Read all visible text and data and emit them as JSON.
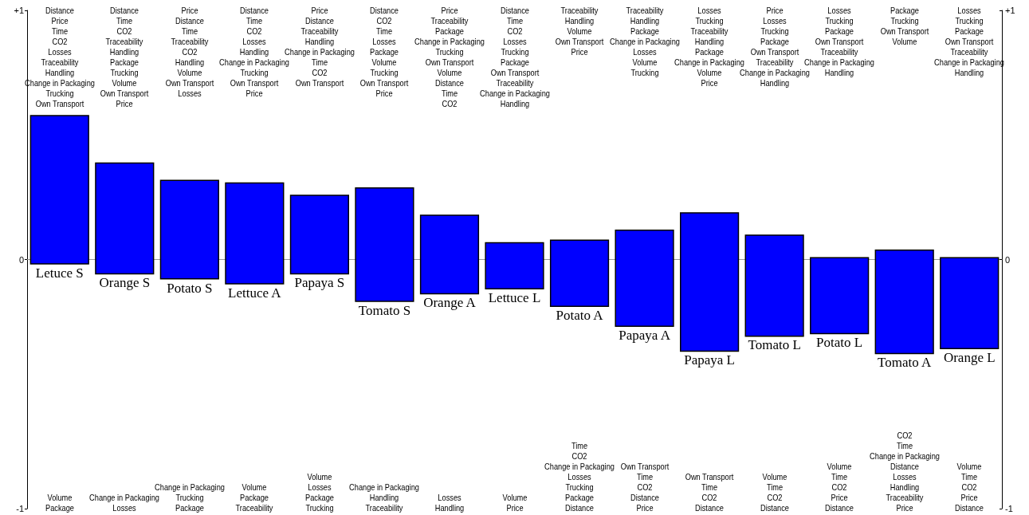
{
  "chart_data": {
    "type": "bar",
    "categories": [
      "Letuce S",
      "Orange S",
      "Potato S",
      "Lettuce A",
      "Papaya S",
      "Tomato S",
      "Orange A",
      "Lettuce L",
      "Potato A",
      "Papaya A",
      "Papaya L",
      "Tomato L",
      "Potato L",
      "Tomato A",
      "Orange L"
    ],
    "base": [
      -0.02,
      -0.06,
      -0.08,
      -0.1,
      -0.06,
      -0.17,
      -0.14,
      -0.12,
      -0.19,
      -0.27,
      -0.37,
      -0.31,
      -0.3,
      -0.38,
      -0.36
    ],
    "values": [
      0.6,
      0.45,
      0.4,
      0.41,
      0.32,
      0.46,
      0.32,
      0.19,
      0.27,
      0.39,
      0.56,
      0.41,
      0.31,
      0.42,
      0.37
    ],
    "color": "#0000ff",
    "ylim": [
      -1,
      1
    ],
    "yticks": [
      {
        "value": 1,
        "label": "+1"
      },
      0,
      -1
    ],
    "y2lim": [
      -1,
      1
    ],
    "y2ticks": [
      {
        "value": 1,
        "label": "+1"
      },
      0,
      -1
    ],
    "grid": false,
    "annotations": [
      "Distance\nPrice\nTime\nCO2\nLosses\nTraceability\nHandling\nChange in Packaging\nTrucking\nOwn Transport",
      "Distance\nTime\nCO2\nTraceability\nHandling\nPackage\nTrucking\nVolume\nOwn Transport\nPrice",
      "Price\nDistance\nTime\nTraceability\nCO2\nHandling\nVolume\nOwn Transport\nLosses",
      "Distance\nTime\nCO2\nLosses\nHandling\nChange in Packaging\nTrucking\nOwn Transport\nPrice",
      "Price\nDistance\nTraceability\nHandling\nChange in Packaging\nTime\nCO2\nOwn Transport",
      "Distance\nCO2\nTime\nLosses\nPackage\nVolume\nTrucking\nOwn Transport\nPrice",
      "Price\nTraceability\nPackage\nChange in Packaging\nTrucking\nOwn Transport\nVolume\nDistance\nTime\nCO2",
      "Distance\nTime\nCO2\nLosses\nTrucking\nPackage\nOwn Transport\nTraceability\nChange in Packaging\nHandling",
      "Traceability\nHandling\nVolume\nOwn Transport\nPrice",
      "Traceability\nHandling\nPackage\nChange in Packaging\nLosses\nVolume\nTrucking",
      "Losses\nTrucking\nTraceability\nHandling\nPackage\nChange in Packaging\nVolume\nPrice",
      "Price\nLosses\nTrucking\nPackage\nOwn Transport\nTraceability\nChange in Packaging\nHandling",
      "Losses\nTrucking\nPackage\nOwn Transport\nTraceability\nChange in Packaging\nHandling",
      "Package\nTrucking\nOwn Transport\nVolume",
      "Losses\nTrucking\nPackage\nOwn Transport\nTraceability\nChange in Packaging\nHandling",
      "Volume\nPackage",
      "Change in Packaging\nLosses",
      "Change in Packaging\nTrucking\nPackage",
      "Volume\nPackage\nTraceability",
      "Volume\nLosses\nPackage\nTrucking",
      "Change in Packaging\nHandling\nTraceability",
      "Losses\nHandling",
      "Volume\nPrice",
      "Time\nCO2\nChange in Packaging\nLosses\nTrucking\nPackage\nDistance",
      "Own Transport\nTime\nCO2\nDistance\nPrice",
      "Own Transport\nTime\nCO2\nDistance",
      "Volume\nTime\nCO2\nDistance",
      "Volume\nTime\nCO2\nPrice\nDistance",
      "CO2\nTime\nChange in Packaging\nDistance\nLosses\nHandling\nTraceability\nPrice",
      "Volume\nTime\nCO2\nPrice\nDistance"
    ]
  }
}
